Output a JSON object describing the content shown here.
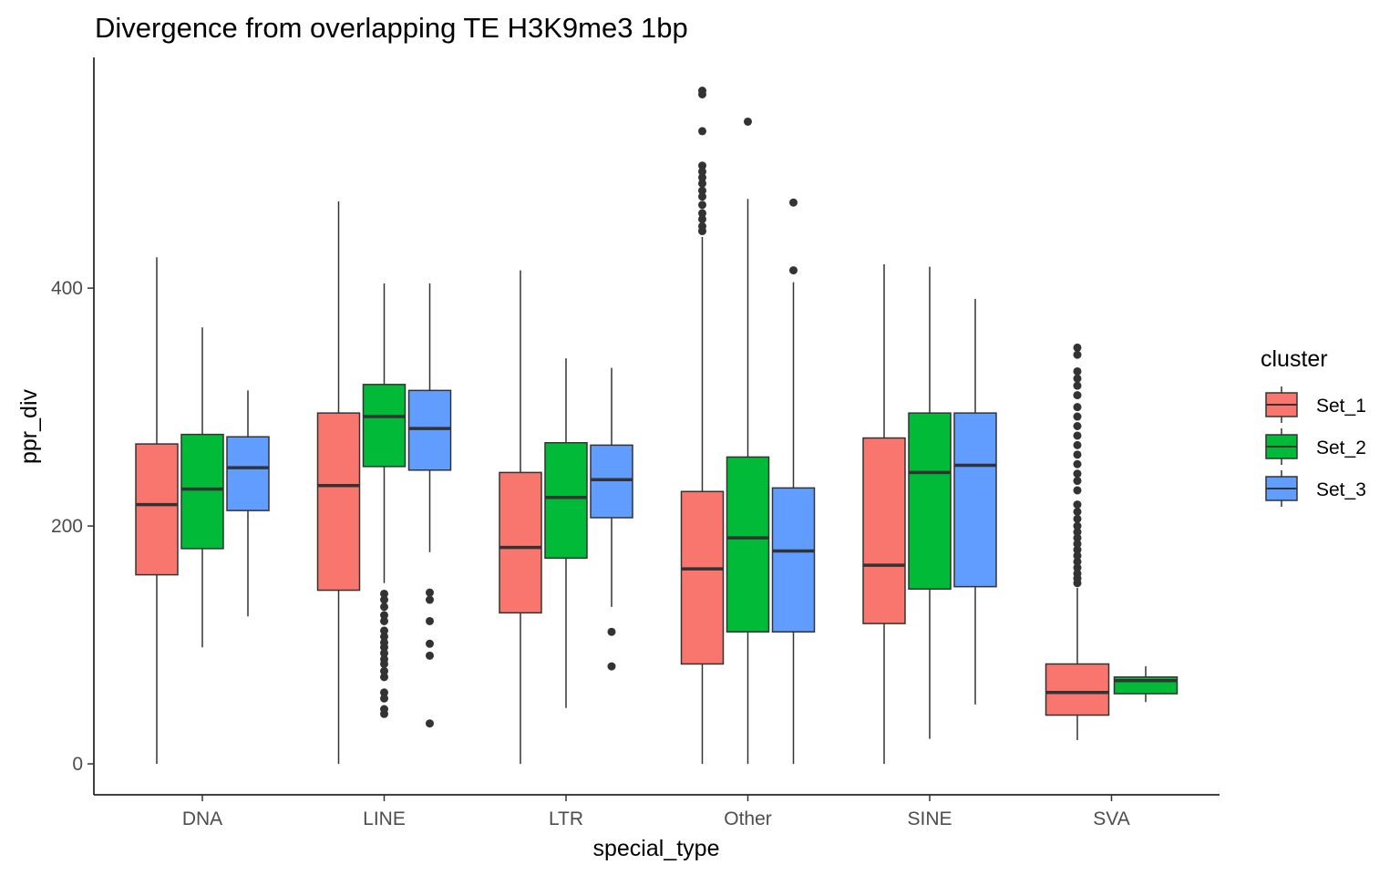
{
  "chart_data": {
    "type": "boxplot",
    "title": "Divergence from overlapping TE H3K9me3 1bp",
    "xlabel": "special_type",
    "ylabel": "ppr_div",
    "ylim": [
      -26,
      594
    ],
    "yticks": [
      0,
      200,
      400
    ],
    "categories": [
      "DNA",
      "LINE",
      "LTR",
      "Other",
      "SINE",
      "SVA"
    ],
    "legend": {
      "title": "cluster",
      "position": "right",
      "entries": [
        {
          "name": "Set_1",
          "color": "#F8766D"
        },
        {
          "name": "Set_2",
          "color": "#00BA38"
        },
        {
          "name": "Set_3",
          "color": "#619CFF"
        }
      ]
    },
    "series": [
      {
        "name": "Set_1",
        "color": "#F8766D",
        "boxes": [
          {
            "category": "DNA",
            "min": 0,
            "q1": 159,
            "median": 218,
            "q3": 269,
            "max": 426,
            "outliers": []
          },
          {
            "category": "LINE",
            "min": 0,
            "q1": 146,
            "median": 234,
            "q3": 295,
            "max": 473,
            "outliers": []
          },
          {
            "category": "LTR",
            "min": 0,
            "q1": 127,
            "median": 182,
            "q3": 245,
            "max": 415,
            "outliers": []
          },
          {
            "category": "Other",
            "min": 0,
            "q1": 84,
            "median": 164,
            "q3": 229,
            "max": 443,
            "outliers": [
              448,
              452,
              458,
              463,
              470,
              477,
              482,
              488,
              493,
              498,
              503,
              532,
              563,
              566
            ]
          },
          {
            "category": "SINE",
            "min": 0,
            "q1": 118,
            "median": 167,
            "q3": 274,
            "max": 420,
            "outliers": []
          },
          {
            "category": "SVA",
            "min": 20,
            "q1": 41,
            "median": 60,
            "q3": 84,
            "max": 148,
            "outliers": [
              152,
              156,
              160,
              165,
              170,
              175,
              180,
              185,
              190,
              195,
              200,
              206,
              212,
              218,
              230,
              238,
              244,
              252,
              260,
              268,
              276,
              284,
              292,
              300,
              310,
              318,
              324,
              330,
              344,
              350
            ]
          }
        ]
      },
      {
        "name": "Set_2",
        "color": "#00BA38",
        "boxes": [
          {
            "category": "DNA",
            "min": 98,
            "q1": 181,
            "median": 231,
            "q3": 277,
            "max": 367,
            "outliers": []
          },
          {
            "category": "LINE",
            "min": 152,
            "q1": 250,
            "median": 292,
            "q3": 319,
            "max": 404,
            "outliers": [
              42,
              46,
              55,
              60,
              73,
              78,
              84,
              88,
              93,
              98,
              102,
              107,
              112,
              120,
              125,
              132,
              138,
              143
            ]
          },
          {
            "category": "LTR",
            "min": 47,
            "q1": 173,
            "median": 224,
            "q3": 270,
            "max": 341,
            "outliers": []
          },
          {
            "category": "Other",
            "min": 0,
            "q1": 111,
            "median": 190,
            "q3": 258,
            "max": 475,
            "outliers": [
              540
            ]
          },
          {
            "category": "SINE",
            "min": 21,
            "q1": 147,
            "median": 245,
            "q3": 295,
            "max": 418,
            "outliers": []
          },
          {
            "category": "SVA",
            "min": 52,
            "q1": 59,
            "median": 70,
            "q3": 73,
            "max": 82,
            "outliers": []
          }
        ]
      },
      {
        "name": "Set_3",
        "color": "#619CFF",
        "boxes": [
          {
            "category": "DNA",
            "min": 124,
            "q1": 213,
            "median": 249,
            "q3": 275,
            "max": 314,
            "outliers": []
          },
          {
            "category": "LINE",
            "min": 178,
            "q1": 247,
            "median": 282,
            "q3": 314,
            "max": 404,
            "outliers": [
              34,
              91,
              101,
              120,
              138,
              144
            ]
          },
          {
            "category": "LTR",
            "min": 132,
            "q1": 207,
            "median": 239,
            "q3": 268,
            "max": 333,
            "outliers": [
              82,
              111
            ]
          },
          {
            "category": "Other",
            "min": 0,
            "q1": 111,
            "median": 179,
            "q3": 232,
            "max": 405,
            "outliers": [
              415,
              472
            ]
          },
          {
            "category": "SINE",
            "min": 50,
            "q1": 149,
            "median": 251,
            "q3": 295,
            "max": 391,
            "outliers": []
          }
        ]
      }
    ]
  }
}
